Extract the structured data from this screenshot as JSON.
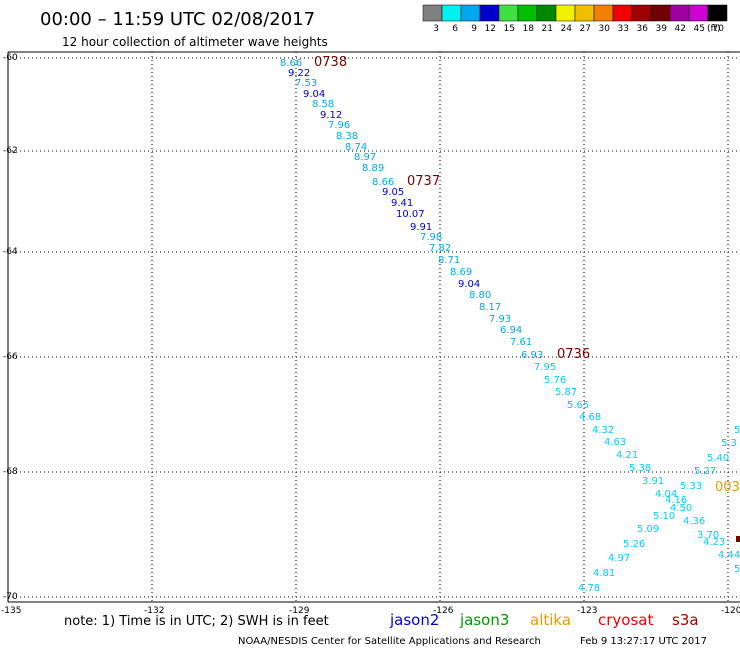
{
  "header": {
    "title": "00:00 – 11:59 UTC 02/08/2017",
    "subtitle": "12 hour collection of altimeter wave heights"
  },
  "color_scale": {
    "unit": "(ft)",
    "entries": [
      {
        "label": "3",
        "color": "#808080"
      },
      {
        "label": "6",
        "color": "#00f0f0"
      },
      {
        "label": "9",
        "color": "#00a8f0"
      },
      {
        "label": "12",
        "color": "#0000cc"
      },
      {
        "label": "15",
        "color": "#40e040"
      },
      {
        "label": "18",
        "color": "#00c000"
      },
      {
        "label": "21",
        "color": "#008800"
      },
      {
        "label": "24",
        "color": "#f0f000"
      },
      {
        "label": "27",
        "color": "#f0c000"
      },
      {
        "label": "30",
        "color": "#f08000"
      },
      {
        "label": "33",
        "color": "#f00000"
      },
      {
        "label": "36",
        "color": "#a00000"
      },
      {
        "label": "39",
        "color": "#700000"
      },
      {
        "label": "42",
        "color": "#a000a0"
      },
      {
        "label": "45",
        "color": "#d000d0"
      },
      {
        "label": "70",
        "color": "#000000"
      }
    ]
  },
  "axes": {
    "lat_labels": [
      "-60",
      "-62",
      "-64",
      "-66",
      "-68",
      "-70"
    ],
    "lon_labels": [
      "-135",
      "-132",
      "-129",
      "-126",
      "-123",
      "-120"
    ]
  },
  "colors": {
    "light": "#00ccff",
    "mid": "#00aaee",
    "dark": "#0000cc",
    "time": "#7a0000",
    "altika_orange": "#ee9900"
  },
  "tracks": {
    "pass1": {
      "times": [
        "0738",
        "0737",
        "0736"
      ],
      "values": [
        "8.66",
        "9.22",
        "7.53",
        "9.04",
        "8.58",
        "9.12",
        "7.96",
        "8.38",
        "8.74",
        "8.97",
        "8.89",
        "8.66",
        "9.05",
        "9.41",
        "10.07",
        "9.91",
        "7.98",
        "7.82",
        "8.71",
        "8.69",
        "9.04",
        "8.80",
        "8.17",
        "7.93",
        "6.94",
        "7.61",
        "6.93",
        "7.95",
        "5.76",
        "5.87",
        "5.65",
        "4.68",
        "4.32",
        "4.63",
        "4.21",
        "5.38",
        "3.91",
        "4.04",
        "4.16",
        "4.50",
        "4.36",
        "3.70",
        "4.23",
        "4.44"
      ]
    },
    "pass2": {
      "time": "003",
      "values": [
        "5",
        "5.3",
        "5.40",
        "5.27",
        "5.33",
        "5.10",
        "5.09",
        "5.26",
        "4.97",
        "4.81",
        "4.78"
      ]
    },
    "right_edge": [
      "5"
    ]
  },
  "note": {
    "text": "note: 1) Time is in UTC; 2) SWH is in feet"
  },
  "satellites": [
    {
      "name": "jason2",
      "color": "#0000dd"
    },
    {
      "name": "jason3",
      "color": "#009900"
    },
    {
      "name": "altika",
      "color": "#ee9900"
    },
    {
      "name": "cryosat",
      "color": "#ee0000"
    },
    {
      "name": "s3a",
      "color": "#aa0000"
    }
  ],
  "footer": {
    "credit": "NOAA/NESDIS Center for Satellite Applications and Research",
    "timestamp": "Feb  9 13:27:17 UTC 2017"
  }
}
